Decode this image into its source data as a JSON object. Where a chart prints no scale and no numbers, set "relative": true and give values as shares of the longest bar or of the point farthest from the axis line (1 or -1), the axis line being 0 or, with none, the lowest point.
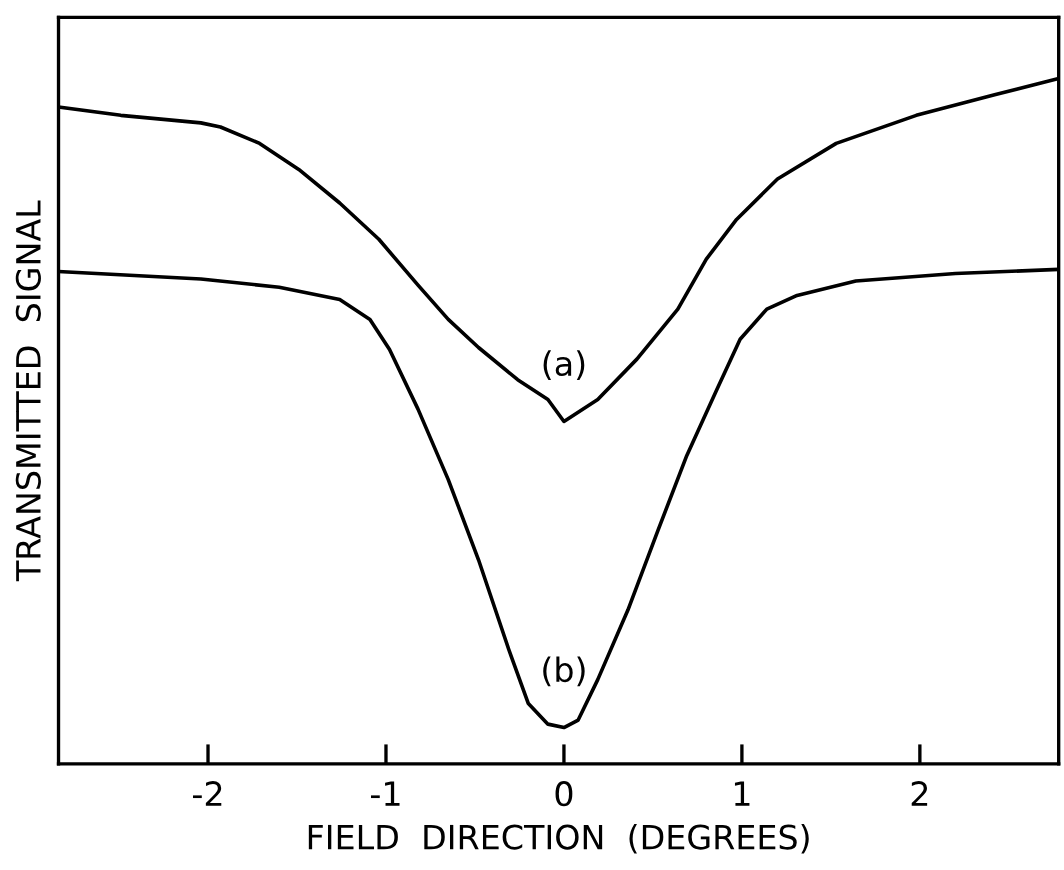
{
  "chart_data": {
    "type": "line",
    "relative": true,
    "xlabel": "FIELD  DIRECTION  (DEGREES)",
    "ylabel": "TRANSMITTED  SIGNAL",
    "xlim": [
      -2.84,
      2.78
    ],
    "xticks": [
      -2,
      -1,
      0,
      1,
      2
    ],
    "grid": false,
    "legend": false,
    "marker": "none",
    "line_style": "solid",
    "series": [
      {
        "name": "(a)",
        "color": "#000000",
        "x": [
          -2.84,
          -2.49,
          -2.04,
          -1.93,
          -1.71,
          -1.49,
          -1.26,
          -1.04,
          -0.82,
          -0.65,
          -0.48,
          -0.26,
          -0.09,
          0,
          0.19,
          0.41,
          0.64,
          0.8,
          0.97,
          1.2,
          1.53,
          1.98,
          2.42,
          2.77
        ],
        "values": [
          0.959,
          0.947,
          0.936,
          0.93,
          0.906,
          0.868,
          0.819,
          0.766,
          0.699,
          0.649,
          0.608,
          0.561,
          0.532,
          0.5,
          0.532,
          0.591,
          0.664,
          0.737,
          0.795,
          0.854,
          0.906,
          0.947,
          0.977,
          1.0
        ]
      },
      {
        "name": "(b)",
        "color": "#000000",
        "x": [
          -2.84,
          -2.04,
          -1.6,
          -1.26,
          -1.09,
          -0.98,
          -0.82,
          -0.65,
          -0.48,
          -0.31,
          -0.2,
          -0.09,
          0,
          0.08,
          0.19,
          0.36,
          0.53,
          0.69,
          0.86,
          0.99,
          1.14,
          1.31,
          1.64,
          2.2,
          2.77
        ],
        "values": [
          0.719,
          0.708,
          0.696,
          0.678,
          0.649,
          0.605,
          0.518,
          0.415,
          0.298,
          0.167,
          0.088,
          0.058,
          0.053,
          0.064,
          0.123,
          0.225,
          0.342,
          0.45,
          0.547,
          0.62,
          0.664,
          0.684,
          0.705,
          0.716,
          0.722
        ]
      }
    ]
  }
}
